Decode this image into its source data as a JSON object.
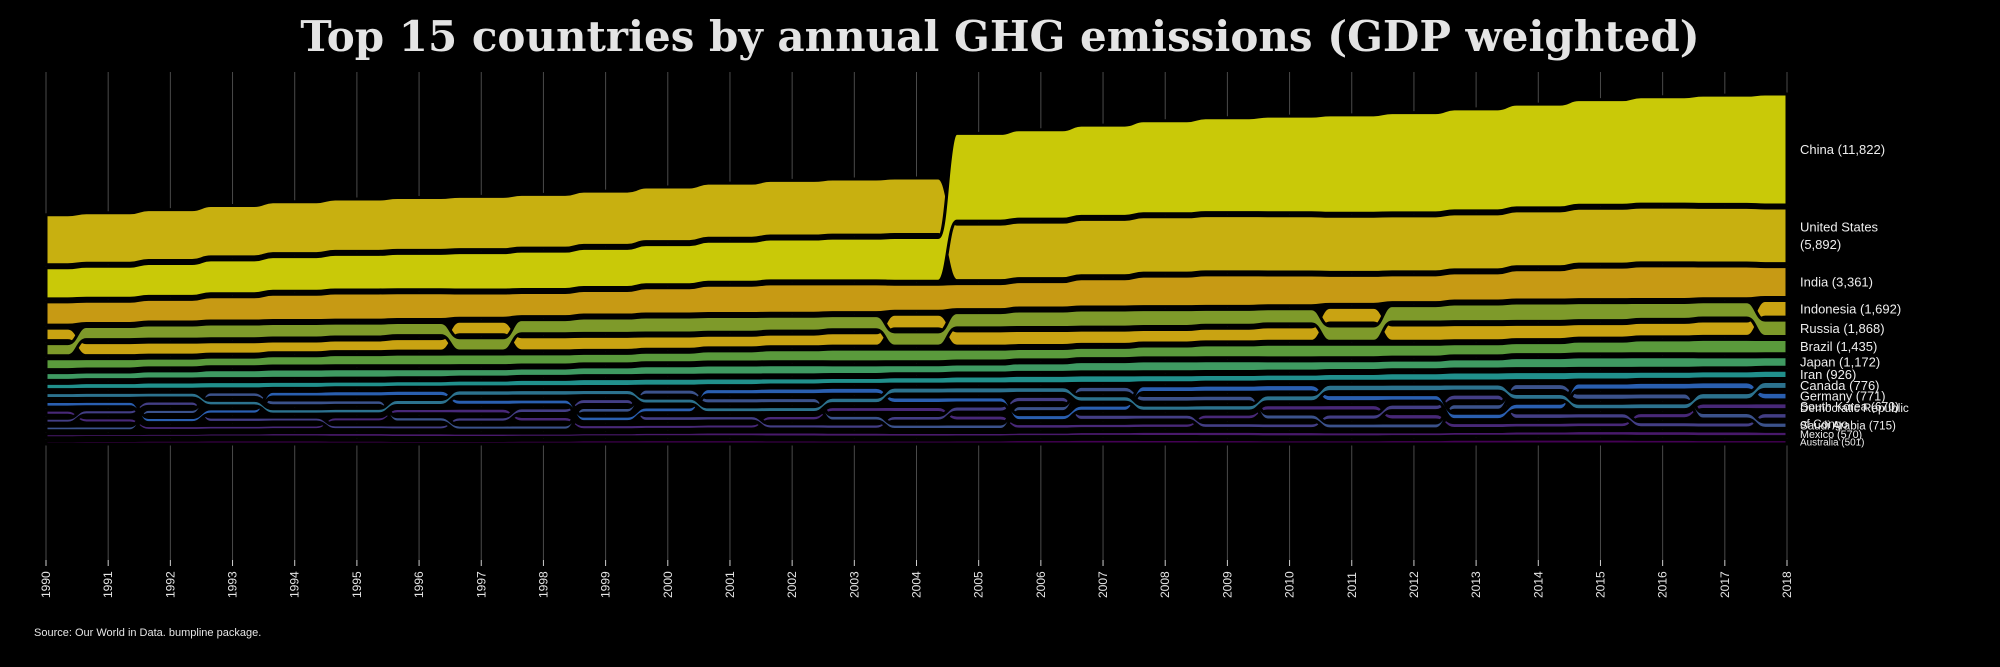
{
  "chart_data": {
    "type": "area",
    "title": "Top 15 countries by annual GHG emissions (GDP weighted)",
    "source": "Source: Our World in Data. bumpline package.",
    "x": [
      1990,
      1991,
      1992,
      1993,
      1994,
      1995,
      1996,
      1997,
      1998,
      1999,
      2000,
      2001,
      2002,
      2003,
      2004,
      2005,
      2006,
      2007,
      2008,
      2009,
      2010,
      2011,
      2012,
      2013,
      2014,
      2015,
      2016,
      2017,
      2018
    ],
    "xtick_labels": [
      "1990",
      "1991",
      "1992",
      "1993",
      "1994",
      "1995",
      "1996",
      "1997",
      "1998",
      "1999",
      "2000",
      "2001",
      "2002",
      "2003",
      "2004",
      "2005",
      "2006",
      "2007",
      "2008",
      "2009",
      "2010",
      "2011",
      "2012",
      "2013",
      "2014",
      "2015",
      "2016",
      "2017",
      "2018"
    ],
    "series": [
      {
        "name": "China",
        "end_label": "China (11,822)",
        "color": "#c9c908",
        "end_value": 11822
      },
      {
        "name": "United States",
        "end_label": "United States (5,892)",
        "end_label_lines": [
          "United States",
          "(5,892)"
        ],
        "color": "#c8b010",
        "end_value": 5892
      },
      {
        "name": "India",
        "end_label": "India (3,361)",
        "color": "#c79a14",
        "end_value": 3361
      },
      {
        "name": "Russia",
        "end_label": "Russia (1,868)",
        "color": "#7e9a2a",
        "end_value": 1868
      },
      {
        "name": "Indonesia",
        "end_label": "Indonesia (1,692)",
        "color": "#c9a312",
        "end_value": 1692
      },
      {
        "name": "Brazil",
        "end_label": "Brazil (1,435)",
        "color": "#5a9a3c",
        "end_value": 1435
      },
      {
        "name": "Japan",
        "end_label": "Japan (1,172)",
        "color": "#3f9a62",
        "end_value": 1172
      },
      {
        "name": "Iran",
        "end_label": "Iran (926)",
        "color": "#21908c",
        "end_value": 926
      },
      {
        "name": "Canada",
        "end_label": "Canada (776)",
        "color": "#2c728e",
        "end_value": 776
      },
      {
        "name": "Germany",
        "end_label": "Germany (771)",
        "color": "#2a5fb0",
        "end_value": 771
      },
      {
        "name": "Saudi Arabia",
        "end_label": "Saudi Arabia (715)",
        "color": "#3b528b",
        "end_value": 715
      },
      {
        "name": "Democratic Republic of Congo",
        "end_label_lines": [
          "Democratic Republic",
          "of Congo"
        ],
        "color": "#433e85",
        "end_value": null
      },
      {
        "name": "South Korea",
        "end_label": "South Korea (670)",
        "color": "#482878",
        "end_value": 670
      },
      {
        "name": "Mexico",
        "end_label": "Mexico (570)",
        "color": "#48196b",
        "end_value": 570
      },
      {
        "name": "Australia",
        "end_label": "Australia (501)",
        "color": "#440154",
        "end_value": 501
      }
    ],
    "xlabel": "",
    "ylabel": "",
    "grid": "vertical lines at each year",
    "legend": "direct labels at right end"
  }
}
